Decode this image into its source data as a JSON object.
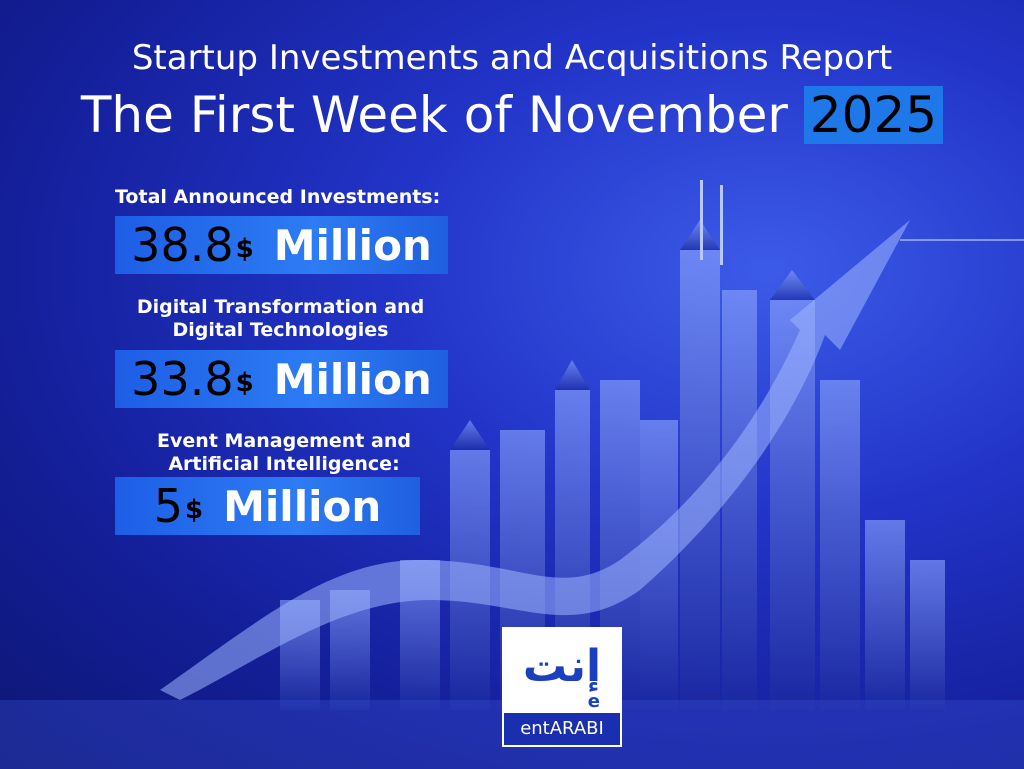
{
  "header": {
    "title": "Startup Investments and Acquisitions Report",
    "subtitle": "The First Week of November",
    "year": "2025"
  },
  "stats": [
    {
      "label": "Total Announced Investments:",
      "amount": "38.8",
      "currency": "$",
      "unit": "Million"
    },
    {
      "label": "Digital Transformation and Digital Technologies",
      "amount": "33.8",
      "currency": "$",
      "unit": "Million"
    },
    {
      "label": "Event Management and Artificial Intelligence:",
      "amount": "5",
      "currency": "$",
      "unit": "Million"
    }
  ],
  "logo": {
    "mark": "إنت",
    "letter": "e",
    "name": "entARABI"
  }
}
